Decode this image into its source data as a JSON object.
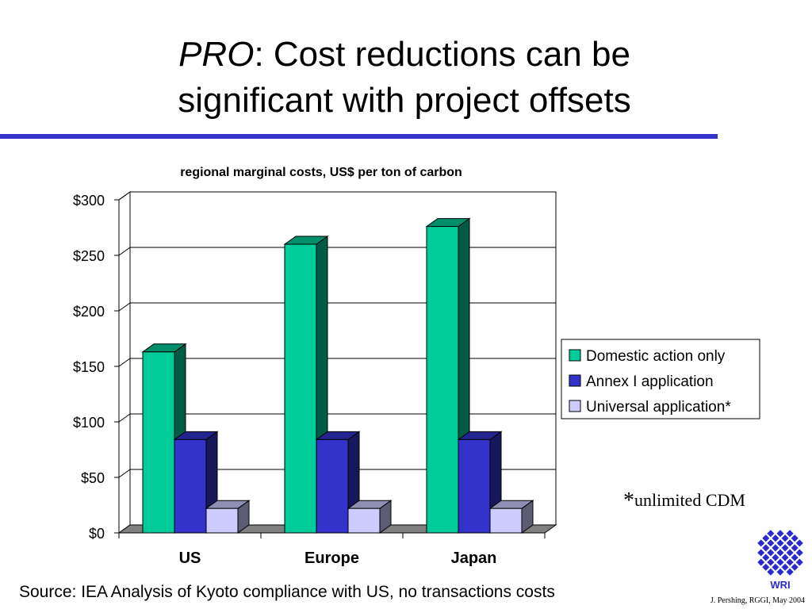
{
  "slide": {
    "title_keyword": "PRO",
    "title_line1_rest": ":  Cost reductions can be",
    "title_line2": "significant with project offsets",
    "note_star": "*",
    "note_text": "unlimited CDM",
    "source": "Source:  IEA Analysis of Kyoto compliance with US, no transactions costs",
    "credit": "J. Pershing, RGGI, May 2004",
    "logo_text": "WRI",
    "logo_color": "#2a2acc",
    "rule_color": "#3333cc"
  },
  "chart_data": {
    "type": "bar",
    "title": "regional marginal costs, US$ per ton of carbon",
    "categories": [
      "US",
      "Europe",
      "Japan"
    ],
    "series": [
      {
        "name": "Domestic action only",
        "values": [
          163,
          260,
          276
        ],
        "color": "#00cc99"
      },
      {
        "name": "Annex I application",
        "values": [
          84,
          84,
          84
        ],
        "color": "#3333cc"
      },
      {
        "name": "Universal application*",
        "values": [
          22,
          22,
          22
        ],
        "color": "#ccccff"
      }
    ],
    "ylim": [
      0,
      300
    ],
    "yticks": [
      "$0",
      "$50",
      "$100",
      "$150",
      "$200",
      "$250",
      "$300"
    ],
    "ytick_values": [
      0,
      50,
      100,
      150,
      200,
      250,
      300
    ],
    "grid": true,
    "three_d": true,
    "legend_position": "right"
  }
}
